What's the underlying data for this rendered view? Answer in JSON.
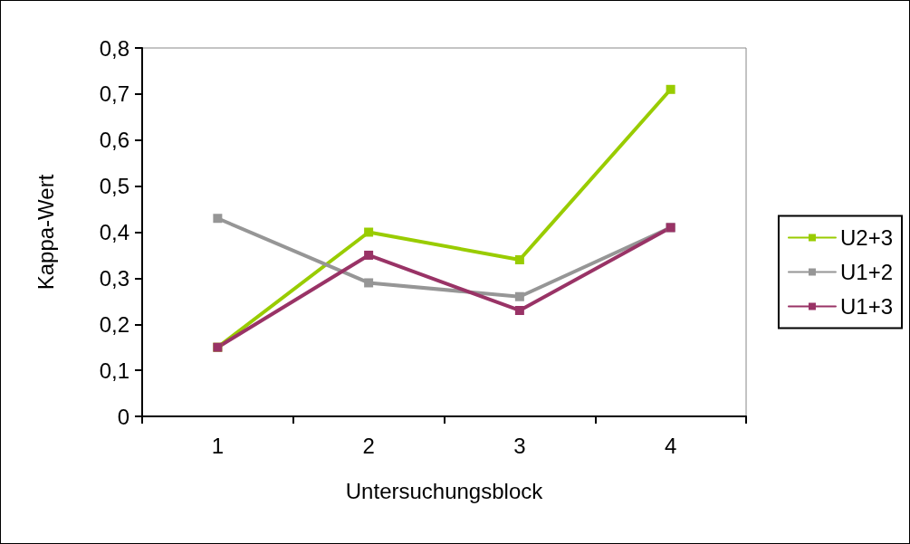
{
  "chart_data": {
    "type": "line",
    "xlabel": "Untersuchungsblock",
    "ylabel": "Kappa-Wert",
    "categories": [
      "1",
      "2",
      "3",
      "4"
    ],
    "series": [
      {
        "name": "U2+3",
        "color": "#99cc00",
        "values": [
          0.15,
          0.4,
          0.34,
          0.71
        ]
      },
      {
        "name": "U1+2",
        "color": "#969696",
        "values": [
          0.43,
          0.29,
          0.26,
          0.41
        ]
      },
      {
        "name": "U1+3",
        "color": "#993366",
        "values": [
          0.15,
          0.35,
          0.23,
          0.41
        ]
      }
    ],
    "ylim": [
      0,
      0.8
    ],
    "yticks": [
      0,
      {
        "value": 0.1,
        "label": "0,1"
      },
      {
        "value": 0.2,
        "label": "0,2"
      },
      {
        "value": 0.3,
        "label": "0,3"
      },
      {
        "value": 0.4,
        "label": "0,4"
      },
      {
        "value": 0.5,
        "label": "0,5"
      },
      {
        "value": 0.6,
        "label": "0,6"
      },
      {
        "value": 0.7,
        "label": "0,7"
      },
      {
        "value": 0.8,
        "label": "0,8"
      }
    ],
    "grid": false,
    "legend": "right",
    "marker": "square",
    "line_style": "solid"
  }
}
